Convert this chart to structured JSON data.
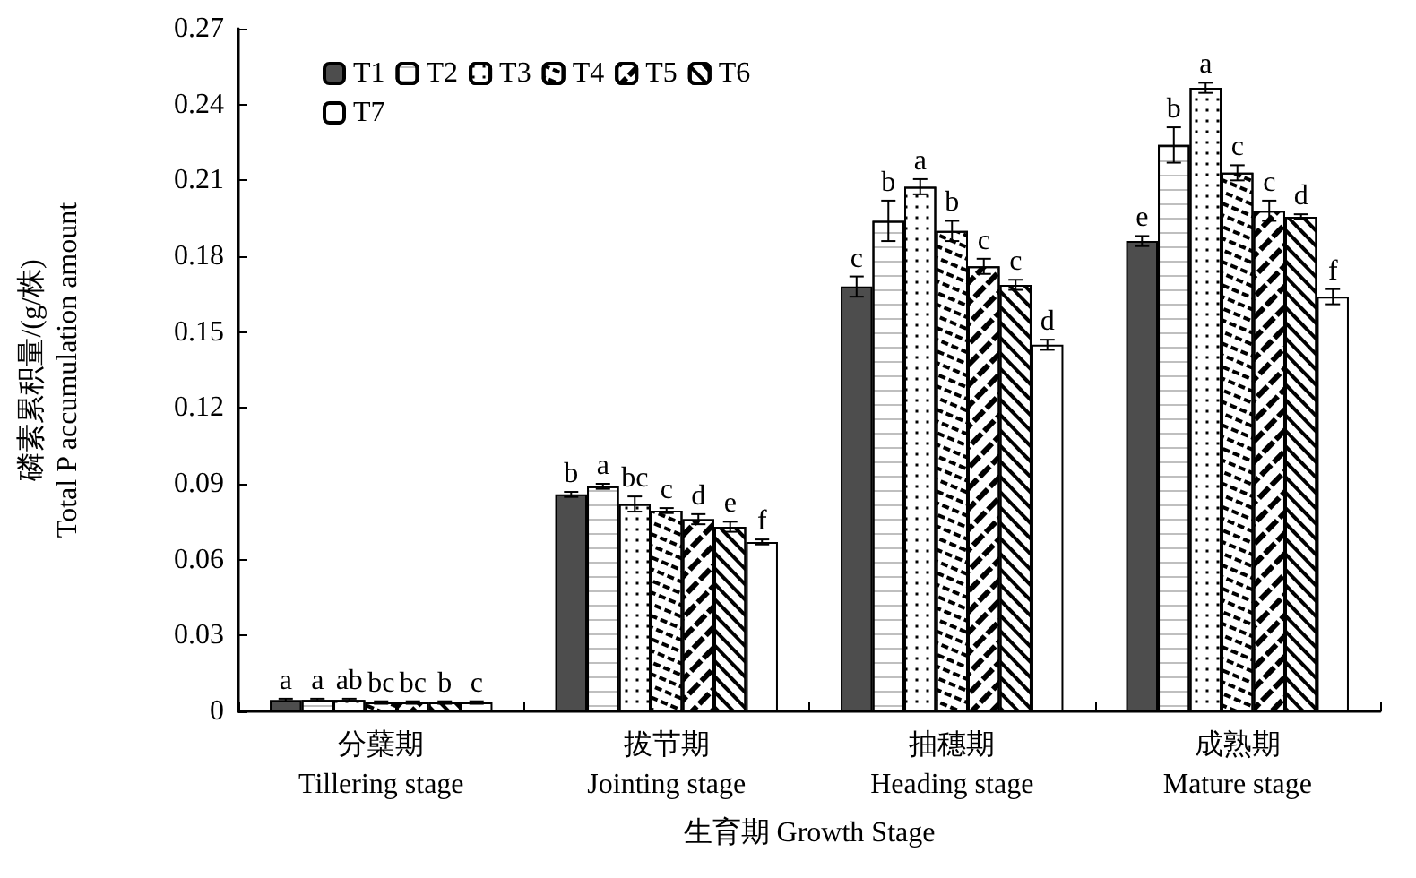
{
  "chart_data": {
    "type": "bar",
    "xlabel": "生育期 Growth Stage",
    "ylabel": "磷素累积量/(g/株)\nTotal P accumulation amount",
    "categories": [
      "分蘖期\nTillering stage",
      "拔节期\nJointing stage",
      "抽穗期\nHeading stage",
      "成熟期\nMature stage"
    ],
    "ylim": [
      0,
      0.27
    ],
    "yticks": [
      0,
      0.03,
      0.06,
      0.09,
      0.12,
      0.15,
      0.18,
      0.21,
      0.24,
      0.27
    ],
    "grid": false,
    "legend": "top left",
    "series": [
      {
        "name": "T1",
        "color": "#4d4d4d",
        "values": [
          0.0045,
          0.0858,
          0.168,
          0.186
        ],
        "errors": [
          0.0005,
          0.001,
          0.004,
          0.002
        ],
        "value_labels": [
          "a",
          "b",
          "c",
          "e"
        ]
      },
      {
        "name": "T2",
        "color": "#ffffff",
        "values": [
          0.0045,
          0.089,
          0.194,
          0.224
        ],
        "errors": [
          0.0005,
          0.001,
          0.008,
          0.007
        ],
        "value_labels": [
          "a",
          "a",
          "b",
          "b"
        ]
      },
      {
        "name": "T3",
        "color": "#ffffff",
        "values": [
          0.0045,
          0.082,
          0.2075,
          0.2466
        ],
        "errors": [
          0.0005,
          0.003,
          0.003,
          0.002
        ],
        "value_labels": [
          "ab",
          "bc",
          "a",
          "a"
        ]
      },
      {
        "name": "T4",
        "color": "#ffffff",
        "values": [
          0.0035,
          0.0794,
          0.19,
          0.213
        ],
        "errors": [
          0.0005,
          0.001,
          0.004,
          0.003
        ],
        "value_labels": [
          "bc",
          "c",
          "b",
          "c"
        ]
      },
      {
        "name": "T5",
        "color": "#ffffff",
        "values": [
          0.0035,
          0.076,
          0.176,
          0.198
        ],
        "errors": [
          0.0005,
          0.002,
          0.003,
          0.004
        ],
        "value_labels": [
          "bc",
          "d",
          "c",
          "c"
        ]
      },
      {
        "name": "T6",
        "color": "#ffffff",
        "values": [
          0.0035,
          0.073,
          0.1687,
          0.1956
        ],
        "errors": [
          0.0005,
          0.002,
          0.002,
          0.001
        ],
        "value_labels": [
          "b",
          "e",
          "c",
          "d"
        ]
      },
      {
        "name": "T7",
        "color": "#ffffff",
        "values": [
          0.0035,
          0.067,
          0.145,
          0.164
        ],
        "errors": [
          0.0005,
          0.001,
          0.002,
          0.003
        ],
        "value_labels": [
          "c",
          "f",
          "d",
          "f"
        ]
      }
    ]
  }
}
